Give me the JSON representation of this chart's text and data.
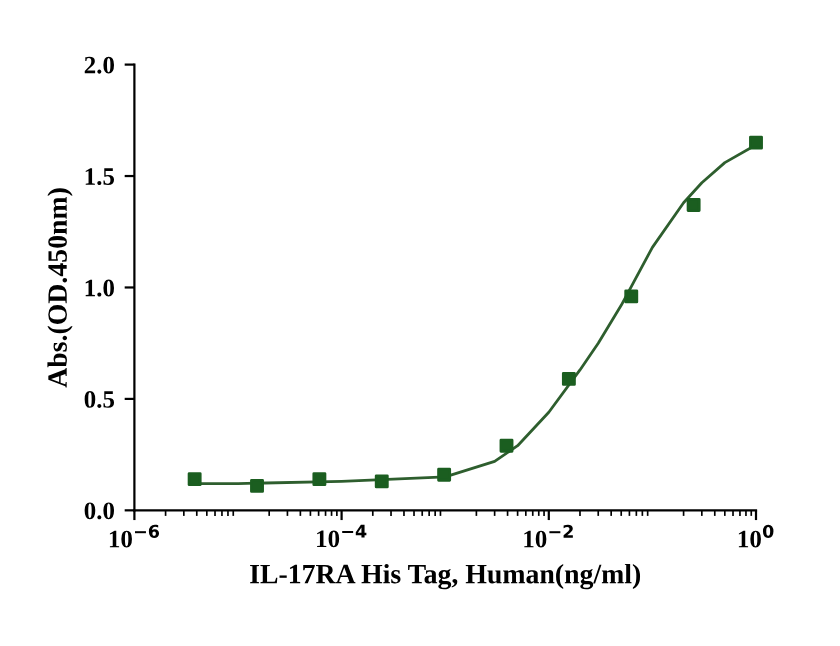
{
  "chart_data": {
    "type": "scatter",
    "xlabel": "IL-17RA His Tag, Human(ng/ml)",
    "ylabel": "Abs.(OD.450nm)",
    "log": "x",
    "xlim": [
      1e-06,
      1
    ],
    "ylim": [
      0,
      2.0
    ],
    "xticks": [
      {
        "value": 1e-06,
        "label": "10$^{−6}$"
      },
      {
        "value": 0.0001,
        "label": "10$^{−4}$"
      },
      {
        "value": 0.01,
        "label": "10$^{−2}$"
      },
      {
        "value": 1,
        "label": "10$^{0}$"
      }
    ],
    "yticks": [
      {
        "value": 0,
        "label": "0.0"
      },
      0.5,
      {
        "value": 1,
        "label": "1.0"
      },
      1.5,
      {
        "value": 2,
        "label": "2.0"
      }
    ],
    "grid": false,
    "legend": false,
    "series": [
      {
        "color": "#1b5e20",
        "marker": "square",
        "x": [
          3.8147e-06,
          1.5259e-05,
          6.1035e-05,
          0.00024414,
          0.00097656,
          0.0039063,
          0.015625,
          0.0625,
          0.25,
          1
        ],
        "values": [
          0.14,
          0.11,
          0.14,
          0.13,
          0.16,
          0.29,
          0.59,
          0.96,
          1.37,
          1.65
        ]
      },
      {
        "type": "line",
        "color": "#2e5e2e",
        "line_style": "solid",
        "x": [
          3.8147e-06,
          1e-05,
          0.0001,
          0.001,
          0.003,
          0.005,
          0.01,
          0.02,
          0.03,
          0.05,
          0.1,
          0.2,
          0.3,
          0.5,
          1
        ],
        "values": [
          0.12,
          0.12,
          0.13,
          0.15,
          0.22,
          0.29,
          0.44,
          0.63,
          0.75,
          0.92,
          1.18,
          1.38,
          1.47,
          1.56,
          1.64
        ]
      }
    ]
  }
}
